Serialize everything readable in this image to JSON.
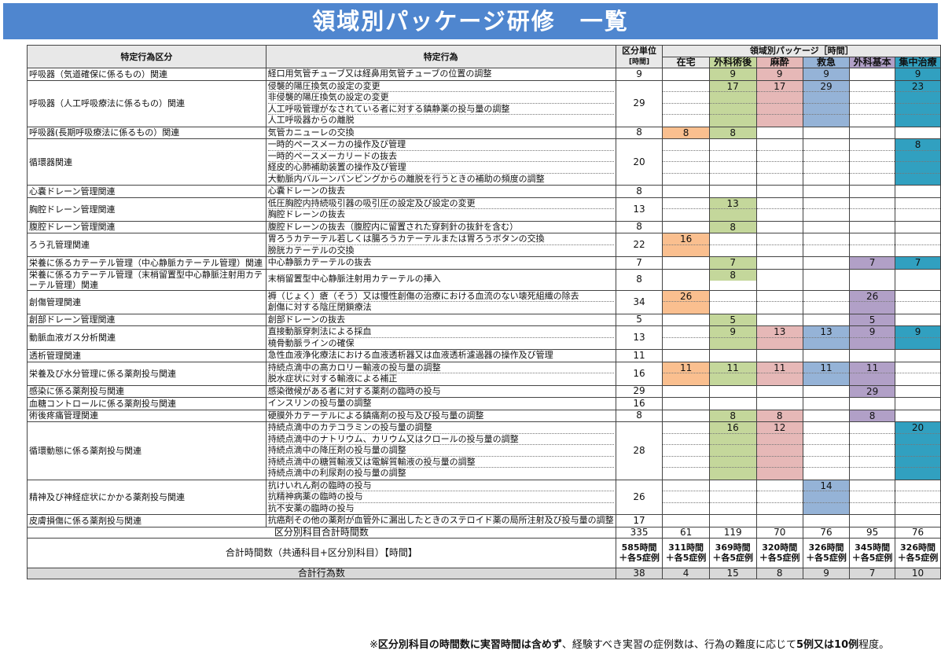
{
  "title": "領域別パッケージ研修　一覧",
  "headers": {
    "category": "特定行為区分",
    "action": "特定行為",
    "unit": "区分単位",
    "unit_sub": "[時間]",
    "pkg_group": "領域別パッケージ［時間］"
  },
  "packages": [
    "在宅",
    "外科術後",
    "麻酔",
    "救急",
    "外科基本",
    "集中治療"
  ],
  "rows": [
    {
      "cat": "呼吸器（気道確保に係るもの）関連",
      "acts": [
        "経口用気管チューブ又は経鼻用気管チューブの位置の調整"
      ],
      "unit": "9",
      "pk": [
        [
          "",
          ""
        ],
        [
          "9",
          "g"
        ],
        [
          "9",
          "r"
        ],
        [
          "9",
          "b"
        ],
        [
          "",
          ""
        ],
        [
          "9",
          "t"
        ]
      ]
    },
    {
      "cat": "呼吸器（人工呼吸療法に係るもの）関連",
      "acts": [
        "侵襲的陽圧換気の設定の変更",
        "非侵襲的陽圧換気の設定の変更",
        "人工呼吸管理がなされている者に対する鎮静薬の投与量の調整",
        "人工呼吸器からの離脱"
      ],
      "unit": "29",
      "pk": [
        [
          "",
          ""
        ],
        [
          "17",
          "g"
        ],
        [
          "17",
          "r"
        ],
        [
          "29",
          "b"
        ],
        [
          "",
          ""
        ],
        [
          "23",
          "t"
        ]
      ]
    },
    {
      "cat": "呼吸器(長期呼吸療法に係るもの）関連",
      "acts": [
        "気管カニューレの交換"
      ],
      "unit": "8",
      "pk": [
        [
          "8",
          "o"
        ],
        [
          "8",
          "g"
        ],
        [
          "",
          ""
        ],
        [
          "",
          ""
        ],
        [
          "",
          ""
        ],
        [
          "",
          ""
        ]
      ]
    },
    {
      "cat": "循環器関連",
      "acts": [
        "一時的ペースメーカの操作及び管理",
        "一時的ペースメーカリードの抜去",
        "経皮的心肺補助装置の操作及び管理",
        "大動脈内バルーンパンピングからの離脱を行うときの補助の頻度の調整"
      ],
      "unit": "20",
      "pk": [
        [
          "",
          ""
        ],
        [
          "",
          ""
        ],
        [
          "",
          ""
        ],
        [
          "",
          ""
        ],
        [
          "",
          ""
        ],
        [
          "8",
          "t"
        ]
      ]
    },
    {
      "cat": "心嚢ドレーン管理関連",
      "acts": [
        "心嚢ドレーンの抜去"
      ],
      "unit": "8",
      "pk": [
        [
          "",
          ""
        ],
        [
          "",
          ""
        ],
        [
          "",
          ""
        ],
        [
          "",
          ""
        ],
        [
          "",
          ""
        ],
        [
          "",
          ""
        ]
      ]
    },
    {
      "cat": "胸腔ドレーン管理関連",
      "acts": [
        "低圧胸腔内持続吸引器の吸引圧の設定及び設定の変更",
        "胸腔ドレーンの抜去"
      ],
      "unit": "13",
      "pk": [
        [
          "",
          ""
        ],
        [
          "13",
          "g"
        ],
        [
          "",
          ""
        ],
        [
          "",
          ""
        ],
        [
          "",
          ""
        ],
        [
          "",
          ""
        ]
      ]
    },
    {
      "cat": "腹腔ドレーン管理関連",
      "acts": [
        "腹腔ドレーンの抜去（腹腔内に留置された穿刺針の抜針を含む）"
      ],
      "unit": "8",
      "pk": [
        [
          "",
          ""
        ],
        [
          "8",
          "g"
        ],
        [
          "",
          ""
        ],
        [
          "",
          ""
        ],
        [
          "",
          ""
        ],
        [
          "",
          ""
        ]
      ]
    },
    {
      "cat": "ろう孔管理関連",
      "acts": [
        "胃ろうカテーテル若しくは腸ろうカテーテルまたは胃ろうボタンの交換",
        "膀胱カテーテルの交換"
      ],
      "unit": "22",
      "pk": [
        [
          "16",
          "o"
        ],
        [
          "",
          ""
        ],
        [
          "",
          ""
        ],
        [
          "",
          ""
        ],
        [
          "",
          ""
        ],
        [
          "",
          ""
        ]
      ]
    },
    {
      "cat": "栄養に係るカテーテル管理（中心静脈カテーテル管理）関連",
      "acts": [
        "中心静脈カテーテルの抜去"
      ],
      "unit": "7",
      "pk": [
        [
          "",
          ""
        ],
        [
          "7",
          "g"
        ],
        [
          "",
          ""
        ],
        [
          "",
          ""
        ],
        [
          "7",
          "p"
        ],
        [
          "7",
          "t"
        ]
      ]
    },
    {
      "cat": "栄養に係るカテーテル管理（末梢留置型中心静脈注射用カテーテル管理）関連",
      "acts": [
        "末梢留置型中心静脈注射用カテーテルの挿入"
      ],
      "unit": "8",
      "pk": [
        [
          "",
          ""
        ],
        [
          "8",
          "g"
        ],
        [
          "",
          ""
        ],
        [
          "",
          ""
        ],
        [
          "",
          ""
        ],
        [
          "",
          ""
        ]
      ]
    },
    {
      "cat": "創傷管理関連",
      "acts": [
        "褥（じょく）瘡（そう）又は慢性創傷の治療における血流のない壊死組織の除去",
        "創傷に対する陰圧閉鎖療法"
      ],
      "unit": "34",
      "pk": [
        [
          "26",
          "o"
        ],
        [
          "",
          ""
        ],
        [
          "",
          ""
        ],
        [
          "",
          ""
        ],
        [
          "26",
          "p"
        ],
        [
          "",
          ""
        ]
      ]
    },
    {
      "cat": "創部ドレーン管理関連",
      "acts": [
        "創部ドレーンの抜去"
      ],
      "unit": "5",
      "pk": [
        [
          "",
          ""
        ],
        [
          "5",
          "g"
        ],
        [
          "",
          ""
        ],
        [
          "",
          ""
        ],
        [
          "5",
          "p"
        ],
        [
          "",
          ""
        ]
      ]
    },
    {
      "cat": "動脈血液ガス分析関連",
      "acts": [
        "直接動脈穿刺法による採血",
        "橈骨動脈ラインの確保"
      ],
      "unit": "13",
      "pk": [
        [
          "",
          ""
        ],
        [
          "9",
          "g"
        ],
        [
          "13",
          "r"
        ],
        [
          "13",
          "b"
        ],
        [
          "9",
          "p"
        ],
        [
          "9",
          "t"
        ]
      ]
    },
    {
      "cat": "透析管理関連",
      "acts": [
        "急性血液浄化療法における血液透析器又は血液透析濾過器の操作及び管理"
      ],
      "unit": "11",
      "pk": [
        [
          "",
          ""
        ],
        [
          "",
          ""
        ],
        [
          "",
          ""
        ],
        [
          "",
          ""
        ],
        [
          "",
          ""
        ],
        [
          "",
          ""
        ]
      ]
    },
    {
      "cat": "栄養及び水分管理に係る薬剤投与関連",
      "acts": [
        "持続点滴中の高カロリー輸液の投与量の調整",
        "脱水症状に対する輸液による補正"
      ],
      "unit": "16",
      "pk": [
        [
          "11",
          "o"
        ],
        [
          "11",
          "g"
        ],
        [
          "11",
          "r"
        ],
        [
          "11",
          "b"
        ],
        [
          "11",
          "p"
        ],
        [
          "",
          ""
        ]
      ]
    },
    {
      "cat": "感染に係る薬剤投与関連",
      "acts": [
        "感染徴候がある者に対する薬剤の臨時の投与"
      ],
      "unit": "29",
      "pk": [
        [
          "",
          ""
        ],
        [
          "",
          ""
        ],
        [
          "",
          ""
        ],
        [
          "",
          ""
        ],
        [
          "29",
          "p"
        ],
        [
          "",
          ""
        ]
      ]
    },
    {
      "cat": "血糖コントロールに係る薬剤投与関連",
      "acts": [
        "インスリンの投与量の調整"
      ],
      "unit": "16",
      "pk": [
        [
          "",
          ""
        ],
        [
          "",
          ""
        ],
        [
          "",
          ""
        ],
        [
          "",
          ""
        ],
        [
          "",
          ""
        ],
        [
          "",
          ""
        ]
      ]
    },
    {
      "cat": "術後疼痛管理関連",
      "acts": [
        "硬膜外カテーテルによる鎮痛剤の投与及び投与量の調整"
      ],
      "unit": "8",
      "pk": [
        [
          "",
          ""
        ],
        [
          "8",
          "g"
        ],
        [
          "8",
          "r"
        ],
        [
          "",
          ""
        ],
        [
          "8",
          "p"
        ],
        [
          "",
          ""
        ]
      ]
    },
    {
      "cat": "循環動態に係る薬剤投与関連",
      "acts": [
        "持続点滴中のカテコラミンの投与量の調整",
        "持続点滴中のナトリウム、カリウム又はクロールの投与量の調整",
        "持続点滴中の降圧剤の投与量の調整",
        "持続点滴中の糖質輸液又は電解質輸液の投与量の調整",
        "持続点滴中の利尿剤の投与量の調整"
      ],
      "unit": "28",
      "pk": [
        [
          "",
          ""
        ],
        [
          "16",
          "g"
        ],
        [
          "12",
          "r"
        ],
        [
          "",
          ""
        ],
        [
          "",
          ""
        ],
        [
          "20",
          "t"
        ]
      ]
    },
    {
      "cat": "精神及び神経症状にかかる薬剤投与関連",
      "acts": [
        "抗けいれん剤の臨時の投与",
        "抗精神病薬の臨時の投与",
        "抗不安薬の臨時の投与"
      ],
      "unit": "26",
      "pk": [
        [
          "",
          ""
        ],
        [
          "",
          ""
        ],
        [
          "",
          ""
        ],
        [
          "14",
          "b"
        ],
        [
          "",
          ""
        ],
        [
          "",
          ""
        ]
      ]
    },
    {
      "cat": "皮膚損傷に係る薬剤投与関連",
      "acts": [
        "抗癌剤その他の薬剤が血管外に漏出したときのステロイド薬の局所注射及び投与量の調整"
      ],
      "unit": "17",
      "pk": [
        [
          "",
          ""
        ],
        [
          "",
          ""
        ],
        [
          "",
          ""
        ],
        [
          "",
          ""
        ],
        [
          "",
          ""
        ],
        [
          "",
          ""
        ]
      ]
    }
  ],
  "summary": {
    "hours_label": "区分別科目合計時間数",
    "hours": [
      "335",
      "61",
      "119",
      "70",
      "76",
      "95",
      "76"
    ],
    "total_label": "合計時間数（共通科目+区分別科目）【時間】",
    "total": [
      "585時間＋各5症例",
      "311時間＋各5症例",
      "369時間＋各5症例",
      "320時間＋各5症例",
      "326時間＋各5症例",
      "345時間＋各5症例",
      "326時間＋各5症例"
    ],
    "acts_label": "合計行為数",
    "acts": [
      "38",
      "4",
      "15",
      "8",
      "9",
      "7",
      "10"
    ]
  },
  "note_pre": "※",
  "note_b1": "区分別科目の時間数に実習時間は含めず",
  "note_mid": "、経験すべき実習の症例数は、行為の難度に応じて",
  "note_b2": "5例又は10例",
  "note_post": "程度。"
}
